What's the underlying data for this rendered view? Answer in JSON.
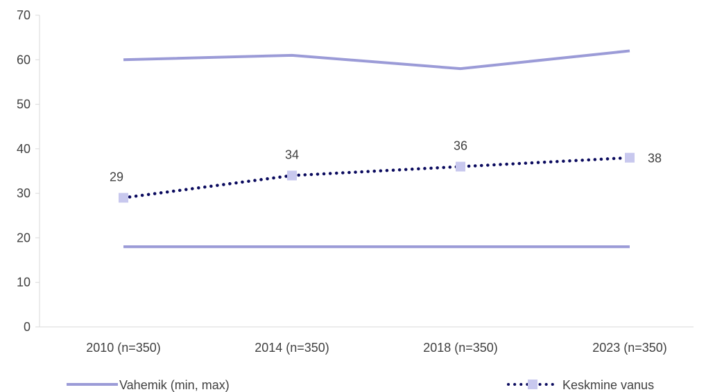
{
  "chart_data": {
    "type": "line",
    "categories": [
      "2010 (n=350)",
      "2014 (n=350)",
      "2018 (n=350)",
      "2023 (n=350)"
    ],
    "ylim": [
      0,
      70
    ],
    "yticks": [
      0,
      10,
      20,
      30,
      40,
      50,
      60,
      70
    ],
    "grid": false,
    "legend_position": "bottom",
    "series": [
      {
        "name": "Vahemik (min, max)",
        "role": "max",
        "values": [
          60,
          61,
          58,
          62
        ],
        "color": "#9b9bd7",
        "style": "solid"
      },
      {
        "name": "Vahemik (min, max)",
        "role": "min",
        "values": [
          18,
          18,
          18,
          18
        ],
        "color": "#9b9bd7",
        "style": "solid"
      },
      {
        "name": "Keskmine vanus",
        "values": [
          29,
          34,
          36,
          38
        ],
        "color": "#0a0a5e",
        "marker_color": "#c8c8ee",
        "style": "dotted",
        "data_labels": [
          "29",
          "34",
          "36",
          "38"
        ]
      }
    ],
    "legend": [
      "Vahemik (min, max)",
      "Keskmine vanus"
    ]
  }
}
